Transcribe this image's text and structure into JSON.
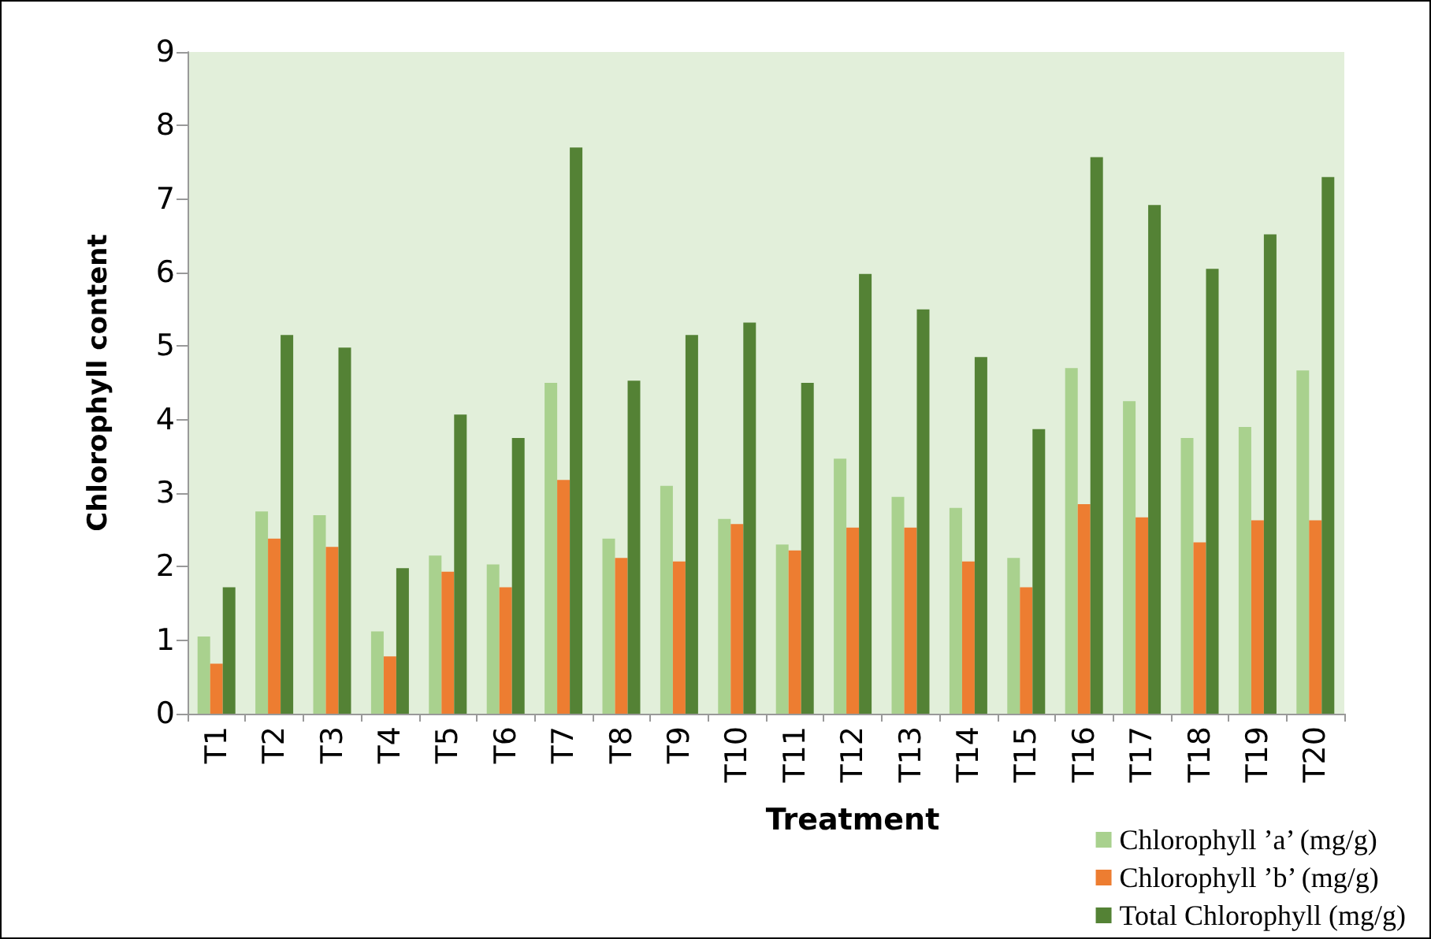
{
  "chart_data": {
    "type": "bar",
    "xlabel": "Treatment",
    "ylabel": "Chlorophyll content",
    "categories": [
      "T1",
      "T2",
      "T3",
      "T4",
      "T5",
      "T6",
      "T7",
      "T8",
      "T9",
      "T10",
      "T11",
      "T12",
      "T13",
      "T14",
      "T15",
      "T16",
      "T17",
      "T18",
      "T19",
      "T20"
    ],
    "series": [
      {
        "name": "Chlorophyll ’a’ (mg/g)",
        "color": "#a9d18e",
        "values": [
          1.05,
          2.75,
          2.7,
          1.12,
          2.15,
          2.03,
          4.5,
          2.38,
          3.1,
          2.65,
          2.3,
          3.47,
          2.95,
          2.8,
          2.12,
          4.7,
          4.25,
          3.75,
          3.9,
          4.67
        ]
      },
      {
        "name": "Chlorophyll ’b’ (mg/g)",
        "color": "#ed7d31",
        "values": [
          0.68,
          2.38,
          2.27,
          0.78,
          1.93,
          1.72,
          3.18,
          2.12,
          2.07,
          2.58,
          2.22,
          2.53,
          2.53,
          2.07,
          1.72,
          2.85,
          2.67,
          2.33,
          2.63,
          2.63
        ]
      },
      {
        "name": "Total Chlorophyll (mg/g)",
        "color": "#548235",
        "values": [
          1.72,
          5.15,
          4.98,
          1.98,
          4.07,
          3.75,
          7.7,
          4.53,
          5.15,
          5.32,
          4.5,
          5.98,
          5.5,
          4.85,
          3.87,
          7.57,
          6.92,
          6.05,
          6.52,
          7.3
        ]
      }
    ],
    "ylim": [
      0,
      9
    ],
    "yticks": [
      0,
      1,
      2,
      3,
      4,
      5,
      6,
      7,
      8,
      9
    ],
    "grid": false,
    "legend": "bottom right"
  }
}
